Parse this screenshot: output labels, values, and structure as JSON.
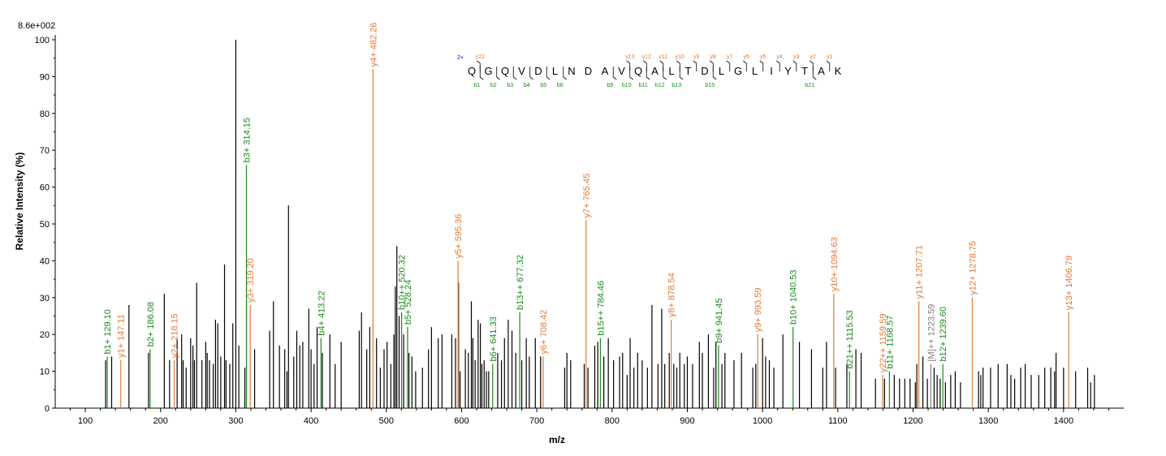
{
  "chart_data": {
    "type": "bar",
    "title": "",
    "scale_label": "8.6e+002",
    "xlabel": "m/z",
    "ylabel": "Relative   Intensity (%)",
    "xlim": [
      60,
      1480
    ],
    "ylim": [
      0,
      100
    ],
    "xticks": [
      100,
      200,
      300,
      400,
      500,
      600,
      700,
      800,
      900,
      1000,
      1100,
      1200,
      1300,
      1400
    ],
    "yticks": [
      0,
      10,
      20,
      30,
      40,
      50,
      60,
      70,
      80,
      90,
      100
    ],
    "colors": {
      "unassigned": "#000000",
      "b_ion": "#1a8a1a",
      "y_ion": "#e07b39",
      "other": "#808080",
      "charge": "#0000cc"
    },
    "annotated_peaks": [
      {
        "mz": 129.1,
        "intensity": 14,
        "label": "b1+ 129.10",
        "type": "b"
      },
      {
        "mz": 147.11,
        "intensity": 13,
        "label": "y1+ 147.11",
        "type": "y"
      },
      {
        "mz": 186.08,
        "intensity": 16,
        "label": "b2+ 186.08",
        "type": "b"
      },
      {
        "mz": 218.15,
        "intensity": 13,
        "label": "y2+ 218.15",
        "type": "y"
      },
      {
        "mz": 314.15,
        "intensity": 66,
        "label": "b3+ 314.15",
        "type": "b"
      },
      {
        "mz": 319.2,
        "intensity": 28,
        "label": "y3+ 319.20",
        "type": "y"
      },
      {
        "mz": 413.22,
        "intensity": 19,
        "label": "b4+ 413.22",
        "type": "b"
      },
      {
        "mz": 482.26,
        "intensity": 92,
        "label": "y4+ 482.26",
        "type": "y"
      },
      {
        "mz": 520.32,
        "intensity": 26,
        "label": "b10++ 520.32",
        "type": "b"
      },
      {
        "mz": 528.24,
        "intensity": 22,
        "label": "b5+ 528.24",
        "type": "b"
      },
      {
        "mz": 595.36,
        "intensity": 40,
        "label": "y5+ 595.36",
        "type": "y"
      },
      {
        "mz": 641.33,
        "intensity": 12,
        "label": "b6+ 641.33",
        "type": "b"
      },
      {
        "mz": 677.32,
        "intensity": 26,
        "label": "b13++ 677.32",
        "type": "b"
      },
      {
        "mz": 708.42,
        "intensity": 14,
        "label": "y6+ 708.42",
        "type": "y"
      },
      {
        "mz": 765.45,
        "intensity": 51,
        "label": "y7+ 765.45",
        "type": "y"
      },
      {
        "mz": 784.46,
        "intensity": 19,
        "label": "b15++ 784.46",
        "type": "b"
      },
      {
        "mz": 878.54,
        "intensity": 24,
        "label": "y8+ 878.54",
        "type": "y"
      },
      {
        "mz": 941.45,
        "intensity": 17,
        "label": "b9+ 941.45",
        "type": "b"
      },
      {
        "mz": 993.59,
        "intensity": 20,
        "label": "y9+ 993.59",
        "type": "y"
      },
      {
        "mz": 1040.53,
        "intensity": 22,
        "label": "b10+ 1040.53",
        "type": "b"
      },
      {
        "mz": 1094.63,
        "intensity": 31,
        "label": "y10+ 1094.63",
        "type": "y"
      },
      {
        "mz": 1115.53,
        "intensity": 10,
        "label": "b21++ 1115.53",
        "type": "b"
      },
      {
        "mz": 1159.59,
        "intensity": 9,
        "label": "y22++ 1159.59",
        "type": "y"
      },
      {
        "mz": 1168.57,
        "intensity": 10,
        "label": "b11+ 1168.57",
        "type": "b"
      },
      {
        "mz": 1207.71,
        "intensity": 29,
        "label": "y11+ 1207.71",
        "type": "y"
      },
      {
        "mz": 1223.59,
        "intensity": 12,
        "label": "[M]++ 1223.59",
        "type": "other"
      },
      {
        "mz": 1239.6,
        "intensity": 12,
        "label": "b12+ 1239.60",
        "type": "b"
      },
      {
        "mz": 1278.75,
        "intensity": 30,
        "label": "y12+ 1278.75",
        "type": "y"
      },
      {
        "mz": 1406.79,
        "intensity": 26,
        "label": "y13+ 1406.79",
        "type": "y"
      }
    ],
    "unassigned_peaks": [
      [
        127,
        13
      ],
      [
        135,
        14
      ],
      [
        158,
        28
      ],
      [
        184,
        15
      ],
      [
        205,
        31
      ],
      [
        212,
        13
      ],
      [
        222,
        19
      ],
      [
        228,
        20
      ],
      [
        230,
        13
      ],
      [
        234,
        11
      ],
      [
        240,
        19
      ],
      [
        243,
        17
      ],
      [
        245,
        13
      ],
      [
        248,
        34
      ],
      [
        255,
        13
      ],
      [
        260,
        18
      ],
      [
        262,
        15
      ],
      [
        265,
        13
      ],
      [
        270,
        12
      ],
      [
        273,
        24
      ],
      [
        276,
        23
      ],
      [
        280,
        14
      ],
      [
        285,
        39
      ],
      [
        287,
        13
      ],
      [
        292,
        12
      ],
      [
        296,
        23
      ],
      [
        300,
        100
      ],
      [
        304,
        17
      ],
      [
        312,
        11
      ],
      [
        325,
        16
      ],
      [
        345,
        21
      ],
      [
        350,
        29
      ],
      [
        358,
        17
      ],
      [
        365,
        16
      ],
      [
        368,
        10
      ],
      [
        370,
        55
      ],
      [
        377,
        14
      ],
      [
        381,
        21
      ],
      [
        385,
        17
      ],
      [
        389,
        18
      ],
      [
        397,
        27
      ],
      [
        400,
        16
      ],
      [
        404,
        12
      ],
      [
        408,
        22
      ],
      [
        415,
        15
      ],
      [
        425,
        20
      ],
      [
        432,
        12
      ],
      [
        440,
        18
      ],
      [
        464,
        21
      ],
      [
        467,
        26
      ],
      [
        474,
        16
      ],
      [
        478,
        22
      ],
      [
        487,
        19
      ],
      [
        492,
        11
      ],
      [
        497,
        16
      ],
      [
        501,
        18
      ],
      [
        506,
        12
      ],
      [
        510,
        20
      ],
      [
        512,
        33
      ],
      [
        514,
        44
      ],
      [
        517,
        25
      ],
      [
        523,
        20
      ],
      [
        530,
        15
      ],
      [
        534,
        14
      ],
      [
        539,
        10
      ],
      [
        548,
        11
      ],
      [
        556,
        16
      ],
      [
        560,
        22
      ],
      [
        569,
        19
      ],
      [
        574,
        20
      ],
      [
        587,
        20
      ],
      [
        592,
        19
      ],
      [
        596,
        34
      ],
      [
        598,
        10
      ],
      [
        605,
        16
      ],
      [
        609,
        15
      ],
      [
        613,
        29
      ],
      [
        615,
        19
      ],
      [
        618,
        13
      ],
      [
        622,
        24
      ],
      [
        625,
        23
      ],
      [
        627,
        12
      ],
      [
        630,
        13
      ],
      [
        633,
        10
      ],
      [
        636,
        10
      ],
      [
        648,
        15
      ],
      [
        653,
        13
      ],
      [
        657,
        19
      ],
      [
        662,
        24
      ],
      [
        667,
        21
      ],
      [
        672,
        15
      ],
      [
        680,
        13
      ],
      [
        686,
        19
      ],
      [
        690,
        14
      ],
      [
        698,
        19
      ],
      [
        705,
        14
      ],
      [
        737,
        11
      ],
      [
        740,
        15
      ],
      [
        745,
        13
      ],
      [
        763,
        12
      ],
      [
        768,
        11
      ],
      [
        777,
        17
      ],
      [
        781,
        18
      ],
      [
        789,
        14
      ],
      [
        795,
        19
      ],
      [
        802,
        13
      ],
      [
        810,
        14
      ],
      [
        814,
        15
      ],
      [
        820,
        9
      ],
      [
        824,
        19
      ],
      [
        829,
        11
      ],
      [
        834,
        15
      ],
      [
        840,
        13
      ],
      [
        847,
        11
      ],
      [
        853,
        28
      ],
      [
        861,
        12
      ],
      [
        866,
        27
      ],
      [
        870,
        12
      ],
      [
        876,
        15
      ],
      [
        882,
        12
      ],
      [
        886,
        11
      ],
      [
        890,
        15
      ],
      [
        896,
        12
      ],
      [
        900,
        14
      ],
      [
        907,
        12
      ],
      [
        916,
        18
      ],
      [
        920,
        15
      ],
      [
        928,
        20
      ],
      [
        935,
        11
      ],
      [
        938,
        18
      ],
      [
        946,
        12
      ],
      [
        950,
        15
      ],
      [
        962,
        13
      ],
      [
        972,
        15
      ],
      [
        987,
        11
      ],
      [
        991,
        12
      ],
      [
        1000,
        19
      ],
      [
        1004,
        14
      ],
      [
        1009,
        13
      ],
      [
        1015,
        11
      ],
      [
        1027,
        20
      ],
      [
        1049,
        18
      ],
      [
        1065,
        16
      ],
      [
        1080,
        11
      ],
      [
        1085,
        18
      ],
      [
        1097,
        11
      ],
      [
        1112,
        12
      ],
      [
        1124,
        16
      ],
      [
        1131,
        15
      ],
      [
        1150,
        8
      ],
      [
        1162,
        8
      ],
      [
        1175,
        9
      ],
      [
        1182,
        8
      ],
      [
        1189,
        8
      ],
      [
        1196,
        8
      ],
      [
        1203,
        7
      ],
      [
        1205,
        12
      ],
      [
        1213,
        14
      ],
      [
        1219,
        8
      ],
      [
        1228,
        11
      ],
      [
        1232,
        9
      ],
      [
        1236,
        8
      ],
      [
        1243,
        7
      ],
      [
        1250,
        9
      ],
      [
        1256,
        10
      ],
      [
        1263,
        7
      ],
      [
        1287,
        10
      ],
      [
        1290,
        9
      ],
      [
        1293,
        11
      ],
      [
        1303,
        11
      ],
      [
        1313,
        12
      ],
      [
        1325,
        12
      ],
      [
        1330,
        9
      ],
      [
        1335,
        8
      ],
      [
        1343,
        11
      ],
      [
        1349,
        12
      ],
      [
        1357,
        9
      ],
      [
        1367,
        9
      ],
      [
        1375,
        11
      ],
      [
        1383,
        11
      ],
      [
        1388,
        10
      ],
      [
        1390,
        15
      ],
      [
        1400,
        11
      ],
      [
        1416,
        10
      ],
      [
        1432,
        11
      ],
      [
        1436,
        7
      ],
      [
        1441,
        9
      ]
    ],
    "sequence": {
      "charge": "2+",
      "residues": [
        "Q",
        "G",
        "Q",
        "V",
        "D",
        "L",
        "N",
        "D",
        "A",
        "V",
        "Q",
        "A",
        "L",
        "T",
        "D",
        "L",
        "G",
        "L",
        "I",
        "Y",
        "T",
        "A",
        "K"
      ],
      "y_ions": [
        "y22",
        "",
        "",
        "",
        "",
        "",
        "",
        "",
        "",
        "y13",
        "y12",
        "y11",
        "y10",
        "y9",
        "y8",
        "y7",
        "y6",
        "y5",
        "y4",
        "y3",
        "y2",
        "y1"
      ],
      "b_ions": [
        "b1",
        "b2",
        "b3",
        "b4",
        "b5",
        "b6",
        "",
        "",
        "b9",
        "b10",
        "b11",
        "b12",
        "b13",
        "",
        "b15",
        "",
        "",
        "",
        "",
        "",
        "b21",
        ""
      ]
    }
  }
}
